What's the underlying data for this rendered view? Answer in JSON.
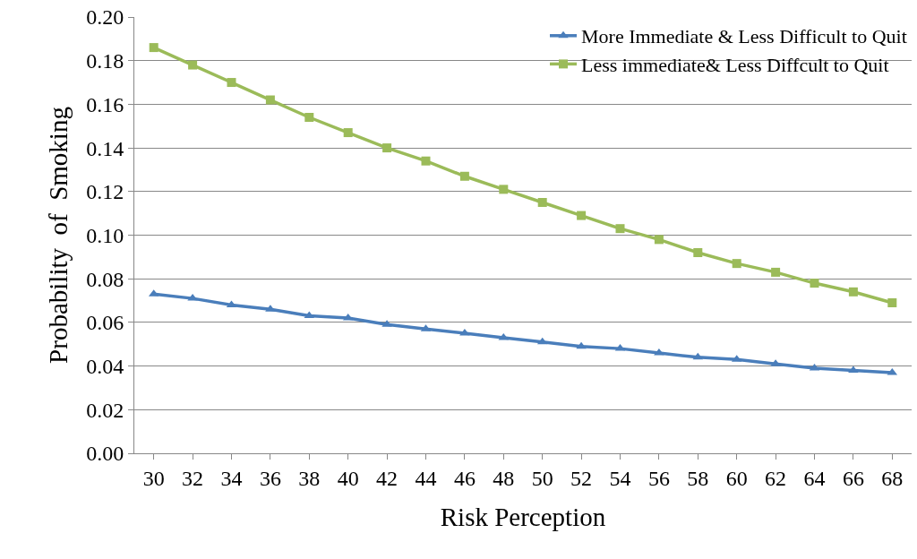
{
  "chart_data": {
    "type": "line",
    "xlabel": "Risk Perception",
    "ylabel": "Probability  of  Smoking",
    "categories": [
      "30",
      "32",
      "34",
      "36",
      "38",
      "40",
      "42",
      "44",
      "46",
      "48",
      "50",
      "52",
      "54",
      "56",
      "58",
      "60",
      "62",
      "64",
      "66",
      "68"
    ],
    "series": [
      {
        "name": "More Immediate & Less Difficult to Quit",
        "color": "#4a7ebb",
        "marker": "triangle",
        "values": [
          0.073,
          0.071,
          0.068,
          0.066,
          0.063,
          0.062,
          0.059,
          0.057,
          0.055,
          0.053,
          0.051,
          0.049,
          0.048,
          0.046,
          0.044,
          0.043,
          0.041,
          0.039,
          0.038,
          0.037
        ]
      },
      {
        "name": "Less immediate& Less Diffcult to Quit",
        "color": "#9bbb59",
        "marker": "square",
        "values": [
          0.186,
          0.178,
          0.17,
          0.162,
          0.154,
          0.147,
          0.14,
          0.134,
          0.127,
          0.121,
          0.115,
          0.109,
          0.103,
          0.098,
          0.092,
          0.087,
          0.083,
          0.078,
          0.074,
          0.069
        ]
      }
    ],
    "ylim": [
      0,
      0.2
    ],
    "yticks": [
      {
        "value": 0,
        "label": "0.00"
      },
      {
        "value": 0.02,
        "label": "0.02"
      },
      {
        "value": 0.04,
        "label": "0.04"
      },
      {
        "value": 0.06,
        "label": "0.06"
      },
      {
        "value": 0.08,
        "label": "0.08"
      },
      {
        "value": 0.1,
        "label": "0.10"
      },
      {
        "value": 0.12,
        "label": "0.12"
      },
      {
        "value": 0.14,
        "label": "0.14"
      },
      {
        "value": 0.16,
        "label": "0.16"
      },
      {
        "value": 0.18,
        "label": "0.18"
      },
      {
        "value": 0.2,
        "label": "0.20"
      }
    ],
    "grid": "y",
    "legend": "top right",
    "line_style": "solid"
  }
}
